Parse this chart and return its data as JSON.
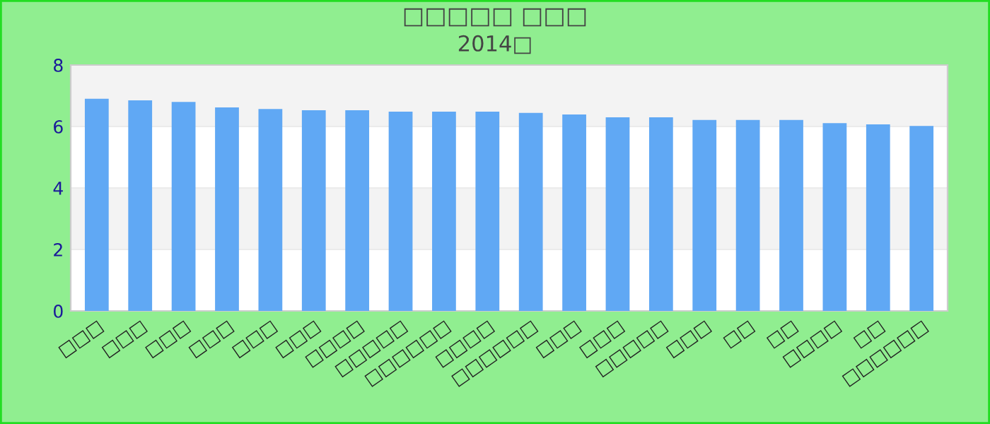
{
  "chart_data": {
    "type": "bar",
    "title": "□□□□□ □□□",
    "subtitle": "2014□",
    "categories": [
      "□□□",
      "□□□",
      "□□□",
      "□□□",
      "□□□",
      "□□□",
      "□□□□",
      "□□□□□",
      "□□□□□□",
      "□□□□",
      "□□□□□□",
      "□□□",
      "□□□",
      "□□□□□",
      "□□□",
      "□□",
      "□□",
      "□□□□",
      "□□",
      "□□□□□□"
    ],
    "values": [
      6.9,
      6.85,
      6.8,
      6.62,
      6.57,
      6.53,
      6.53,
      6.48,
      6.48,
      6.48,
      6.44,
      6.39,
      6.3,
      6.3,
      6.21,
      6.21,
      6.21,
      6.11,
      6.07,
      6.02
    ],
    "color": "#60a8f4",
    "ylim": [
      0,
      8
    ],
    "yticks": [
      0,
      2,
      4,
      6,
      8
    ],
    "grid": "y",
    "legend": false
  }
}
